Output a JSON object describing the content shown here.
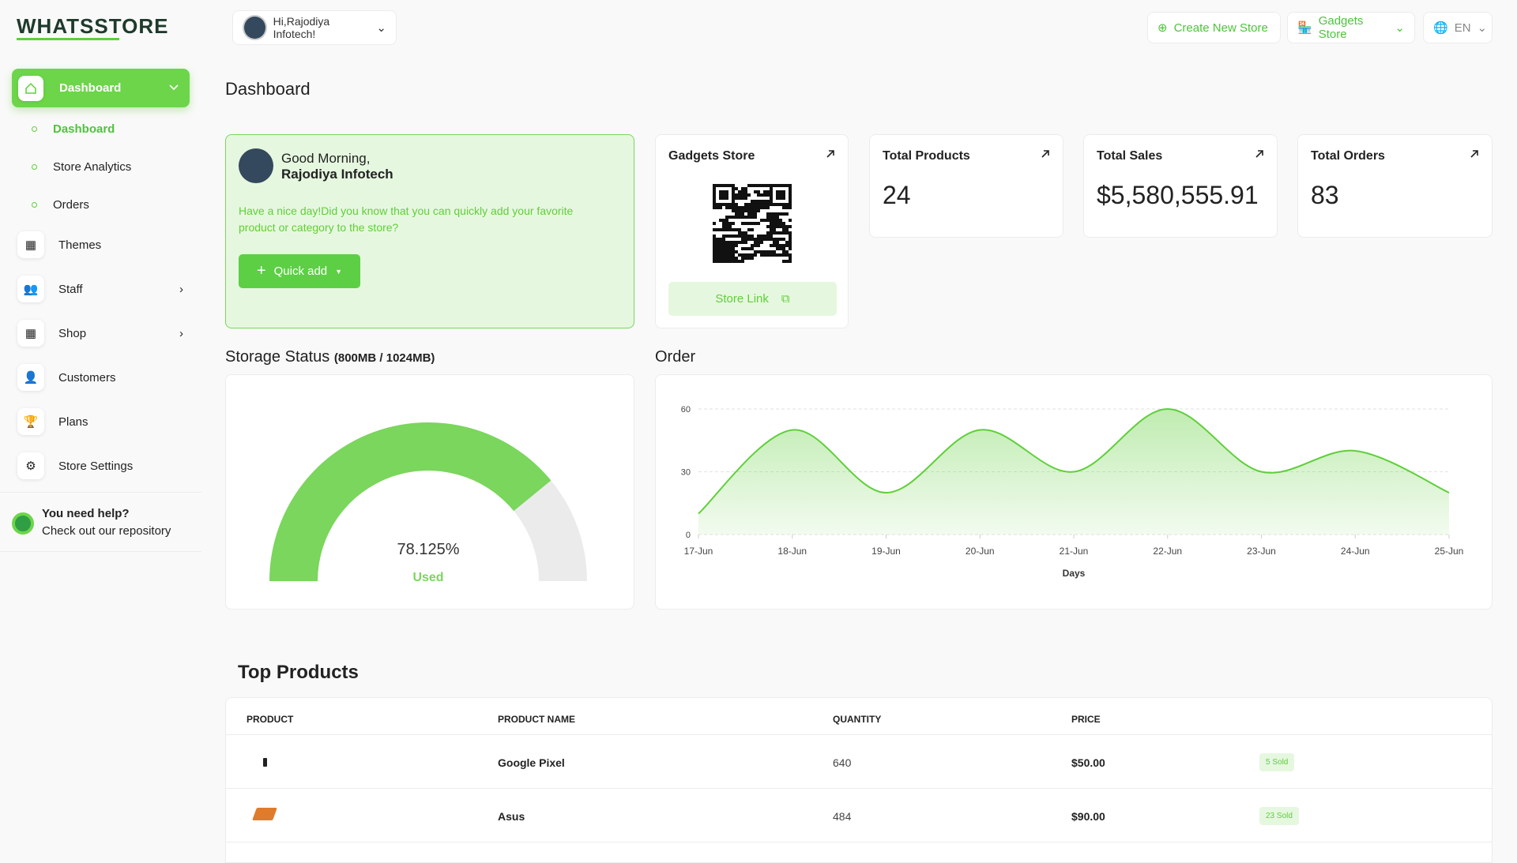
{
  "header": {
    "logo": "WHATSSTORE",
    "greeting": "Hi,Rajodiya Infotech!",
    "create_store": "Create New Store",
    "store_select": "Gadgets Store",
    "language": "EN"
  },
  "sidebar": {
    "items": [
      "Dashboard",
      "Themes",
      "Staff",
      "Shop",
      "Customers",
      "Plans",
      "Store Settings"
    ],
    "sub_items": [
      "Dashboard",
      "Store Analytics",
      "Orders"
    ],
    "help_title": "You need help?",
    "help_text": "Check out our repository"
  },
  "page_title": "Dashboard",
  "welcome": {
    "greeting": "Good Morning,",
    "name": "Rajodiya Infotech",
    "message": "Have a nice day!Did you know that you can quickly add your favorite product or category to the store?",
    "button": "Quick add"
  },
  "store_card": {
    "title": "Gadgets Store",
    "button": "Store Link"
  },
  "stats": [
    {
      "label": "Total Products",
      "value": 24
    },
    {
      "label": "Total Sales",
      "value": "$5,580,555.91"
    },
    {
      "label": "Total Orders",
      "value": 83
    }
  ],
  "storage": {
    "title": "Storage Status",
    "subtitle": "(800MB / 1024MB)",
    "gauge": {
      "value": 78.125,
      "label": "78.125%",
      "status": "Used"
    }
  },
  "chart_data": {
    "type": "area",
    "title": "Order",
    "xlabel": "Days",
    "categories": [
      "17-Jun",
      "18-Jun",
      "19-Jun",
      "20-Jun",
      "21-Jun",
      "22-Jun",
      "23-Jun",
      "24-Jun",
      "25-Jun"
    ],
    "values": [
      10,
      50,
      20,
      50,
      30,
      60,
      30,
      40,
      20
    ],
    "color": "#5fcf3a",
    "ylim": [
      0,
      60
    ],
    "yticks": [
      0,
      30,
      60
    ],
    "grid": true
  },
  "table": {
    "title": "Top Products",
    "headers": [
      "PRODUCT",
      "PRODUCT NAME",
      "QUANTITY",
      "PRICE"
    ],
    "rows": [
      [
        "Google Pixel",
        640,
        "$50.00",
        "5 Sold"
      ],
      [
        "Asus",
        484,
        "$90.00",
        "23 Sold"
      ]
    ]
  }
}
